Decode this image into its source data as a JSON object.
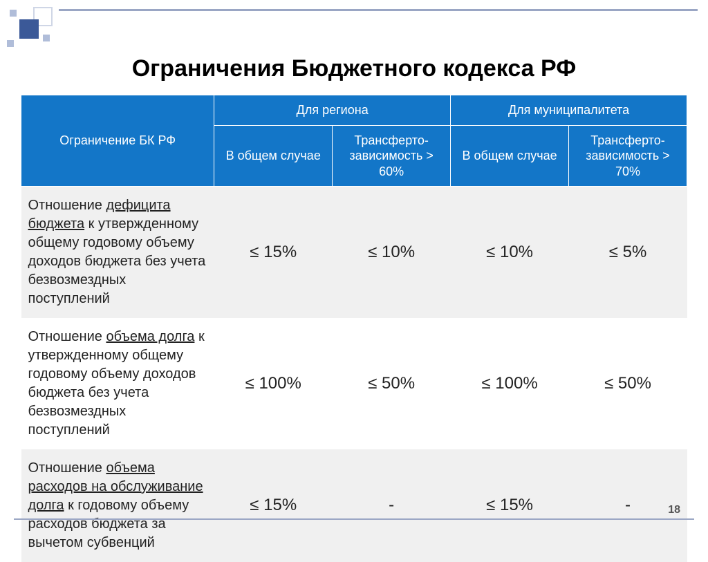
{
  "slide": {
    "title": "Ограничения Бюджетного кодекса РФ",
    "page_number": "18"
  },
  "table": {
    "header": {
      "row_label": "Ограничение БК РФ",
      "group_region": "Для региона",
      "group_muni": "Для муниципалитета",
      "sub_general": "В общем случае",
      "sub_transfer_region": "Трансферто-зависимость > 60%",
      "sub_transfer_muni": "Трансферто-зависимость > 70%"
    },
    "rows": [
      {
        "label_pre": "Отношение ",
        "label_ul": "дефицита бюджета",
        "label_post": " к утвержденному общему годовому объему доходов бюджета без учета безвозмездных поступлений",
        "c1": "≤ 15%",
        "c2": "≤ 10%",
        "c3": "≤ 10%",
        "c4": "≤ 5%"
      },
      {
        "label_pre": "Отношение ",
        "label_ul": "объема долга",
        "label_post": " к утвержденному общему годовому объему доходов бюджета без учета безвозмездных поступлений",
        "c1": "≤ 100%",
        "c2": "≤ 50%",
        "c3": "≤ 100%",
        "c4": "≤ 50%"
      },
      {
        "label_pre": "Отношение ",
        "label_ul": "объема расходов на обслуживание долга",
        "label_post": " к годовому объему расходов бюджета за вычетом субвенций",
        "c1": "≤ 15%",
        "c2": "-",
        "c3": "≤ 15%",
        "c4": "-"
      }
    ]
  },
  "style": {
    "header_bg": "#1376c8",
    "header_fg": "#ffffff",
    "row_odd_bg": "#f0f0f0",
    "row_even_bg": "#ffffff",
    "accent_square": "#3b5998",
    "deco_square": "#b0bdd9",
    "rule_color": "#9aa6c4",
    "title_fontsize": 34,
    "header_fontsize": 18,
    "label_fontsize": 20,
    "value_fontsize": 24
  }
}
